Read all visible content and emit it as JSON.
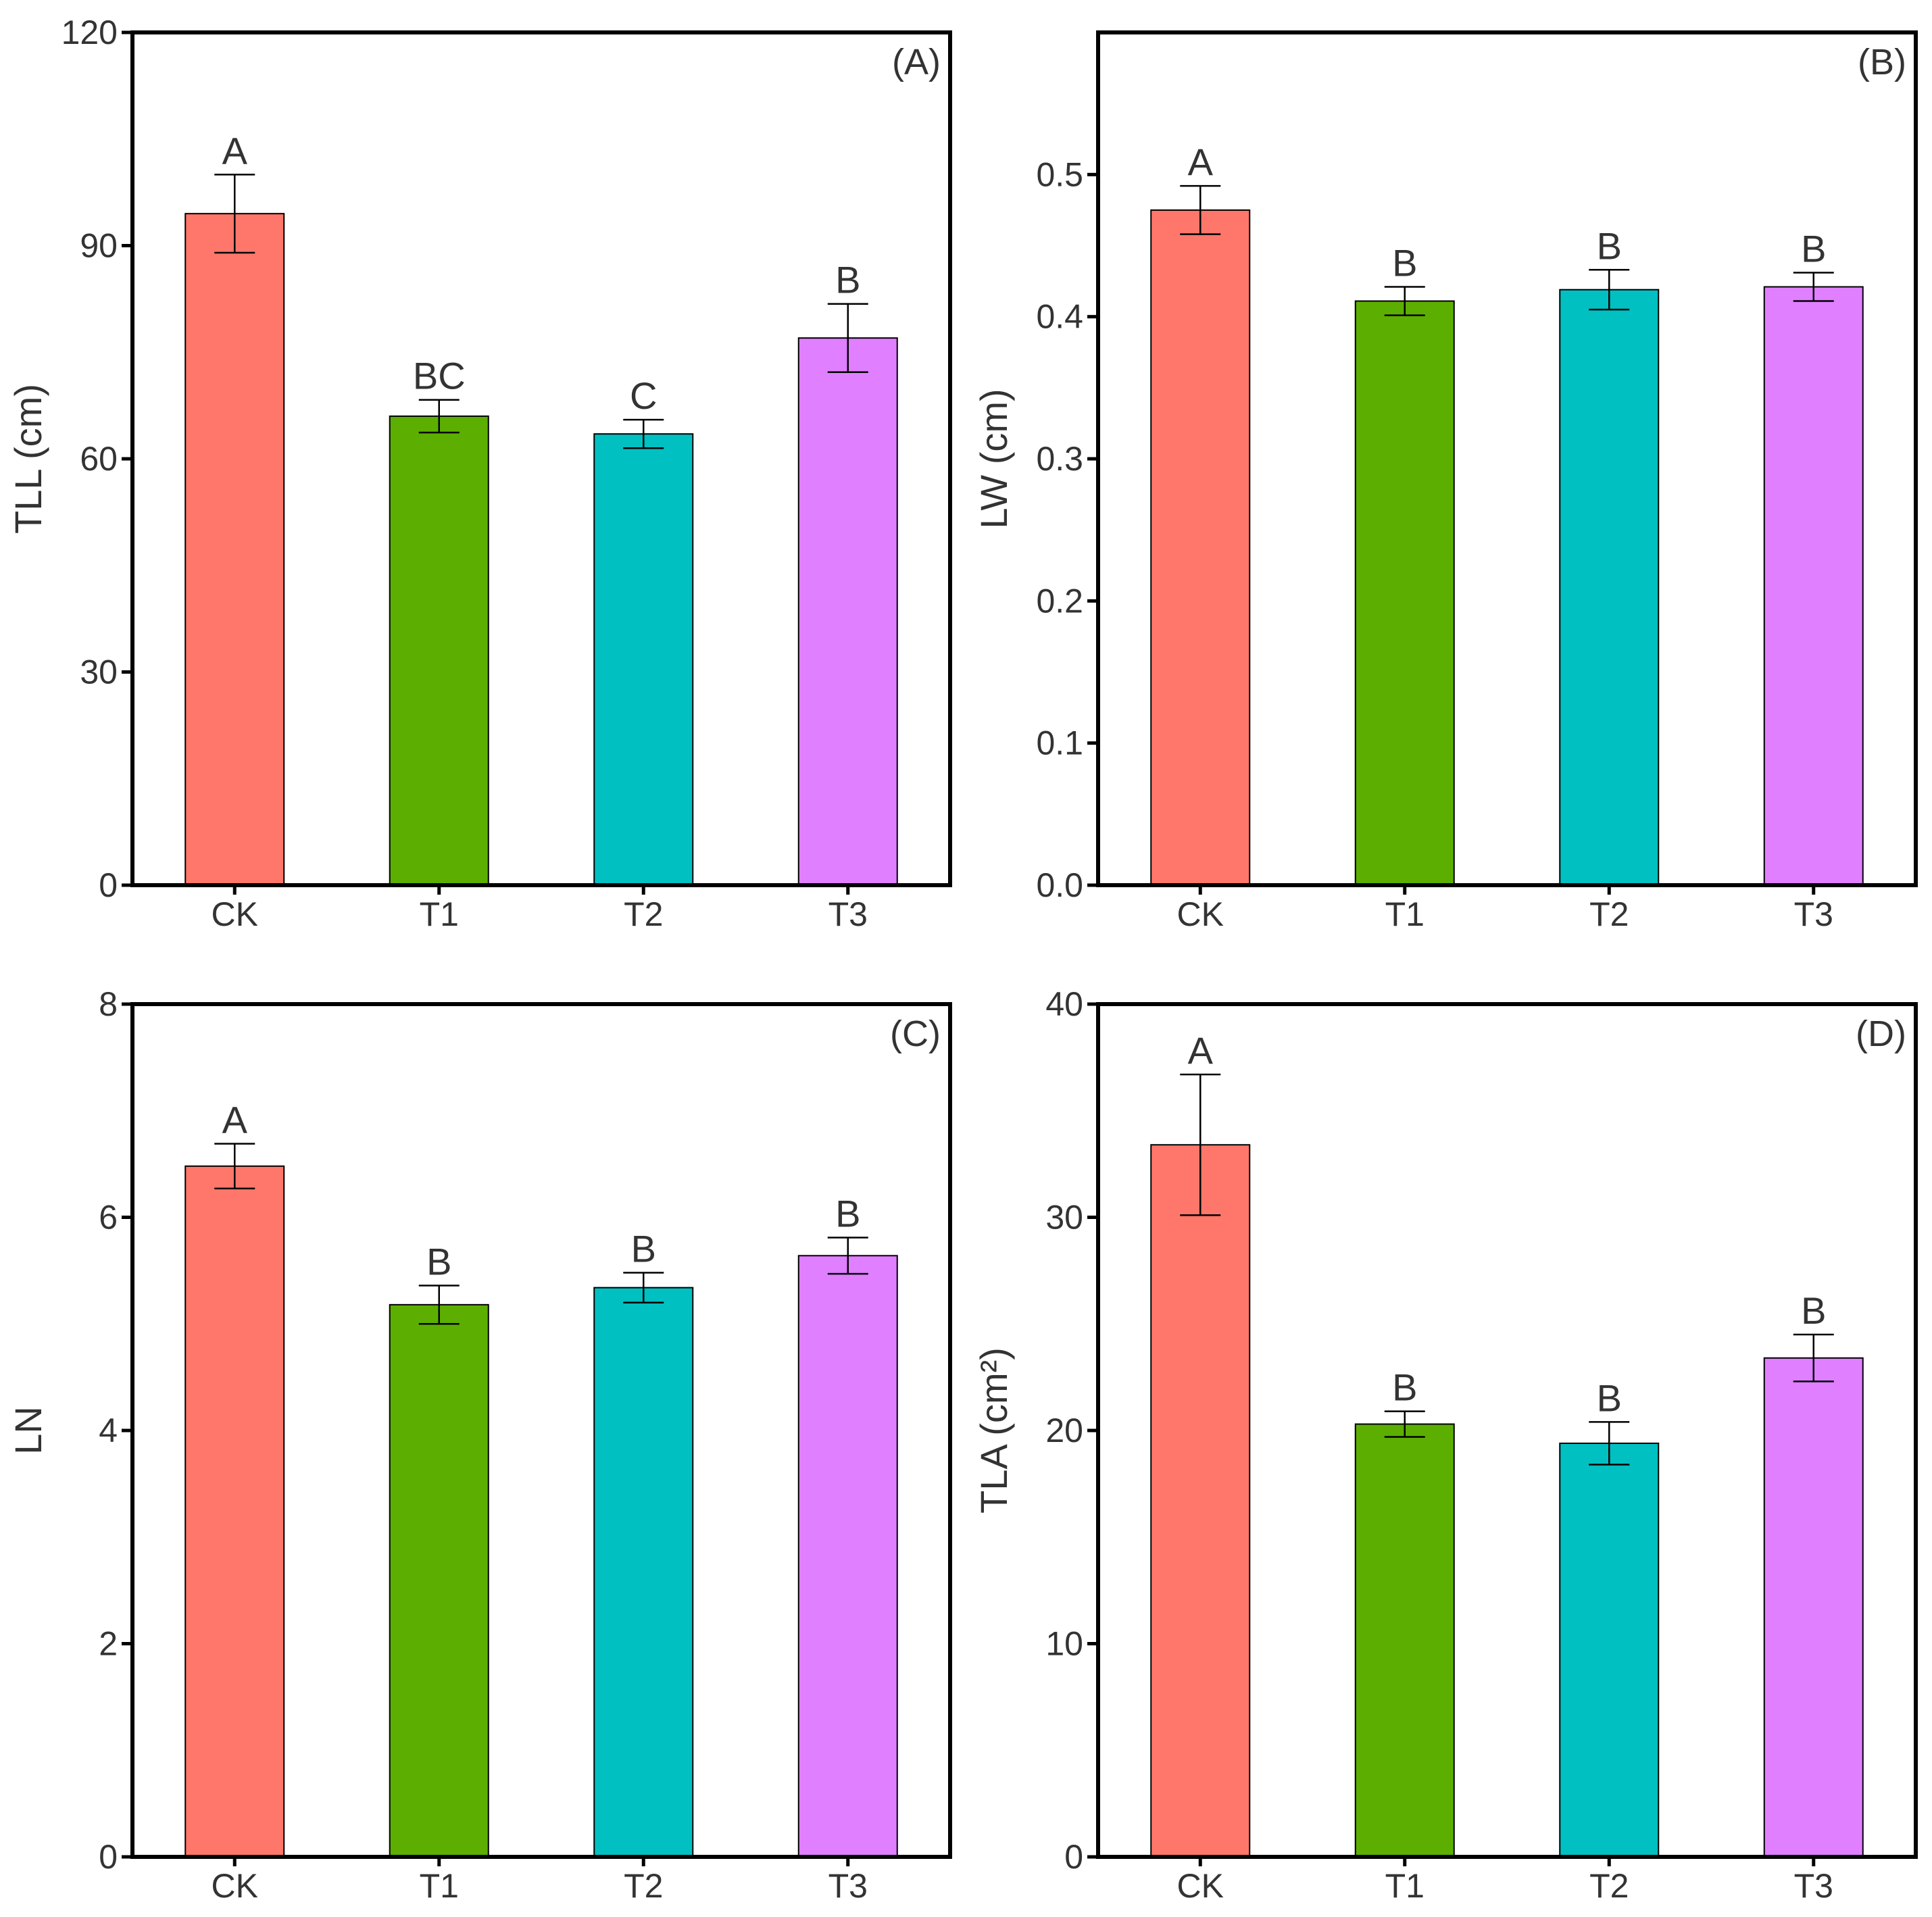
{
  "chart_data": [
    {
      "type": "bar",
      "panel_label": "(A)",
      "ylabel": "TLL (cm)",
      "categories": [
        "CK",
        "T1",
        "T2",
        "T3"
      ],
      "values": [
        94.5,
        66.0,
        63.5,
        77.0
      ],
      "errors": [
        5.5,
        2.3,
        2.0,
        4.8
      ],
      "sig_letters": [
        "A",
        "BC",
        "C",
        "B"
      ],
      "ylim": [
        0,
        120
      ],
      "yticks": [
        0,
        30,
        60,
        90,
        120
      ],
      "ytick_labels": [
        "0",
        "30",
        "60",
        "90",
        "120"
      ]
    },
    {
      "type": "bar",
      "panel_label": "(B)",
      "ylabel": "LW (cm)",
      "categories": [
        "CK",
        "T1",
        "T2",
        "T3"
      ],
      "values": [
        0.475,
        0.411,
        0.419,
        0.421
      ],
      "errors": [
        0.017,
        0.01,
        0.014,
        0.01
      ],
      "sig_letters": [
        "A",
        "B",
        "B",
        "B"
      ],
      "ylim": [
        0,
        0.6
      ],
      "yticks": [
        0,
        0.1,
        0.2,
        0.3,
        0.4,
        0.5
      ],
      "ytick_labels": [
        "0.0",
        "0.1",
        "0.2",
        "0.3",
        "0.4",
        "0.5"
      ]
    },
    {
      "type": "bar",
      "panel_label": "(C)",
      "ylabel": "LN",
      "categories": [
        "CK",
        "T1",
        "T2",
        "T3"
      ],
      "values": [
        6.48,
        5.18,
        5.34,
        5.64
      ],
      "errors": [
        0.21,
        0.18,
        0.14,
        0.17
      ],
      "sig_letters": [
        "A",
        "B",
        "B",
        "B"
      ],
      "ylim": [
        0,
        8
      ],
      "yticks": [
        0,
        2,
        4,
        6,
        8
      ],
      "ytick_labels": [
        "0",
        "2",
        "4",
        "6",
        "8"
      ]
    },
    {
      "type": "bar",
      "panel_label": "(D)",
      "ylabel": "TLA (cm²)",
      "categories": [
        "CK",
        "T1",
        "T2",
        "T3"
      ],
      "values": [
        33.4,
        20.3,
        19.4,
        23.4
      ],
      "errors": [
        3.3,
        0.6,
        1.0,
        1.1
      ],
      "sig_letters": [
        "A",
        "B",
        "B",
        "B"
      ],
      "ylim": [
        0,
        40
      ],
      "yticks": [
        0,
        10,
        20,
        30,
        40
      ],
      "ytick_labels": [
        "0",
        "10",
        "20",
        "30",
        "40"
      ]
    }
  ],
  "colors": {
    "CK": "#FF776A",
    "T1": "#5CAF00",
    "T2": "#00C0C2",
    "T3": "#E07FFF"
  }
}
